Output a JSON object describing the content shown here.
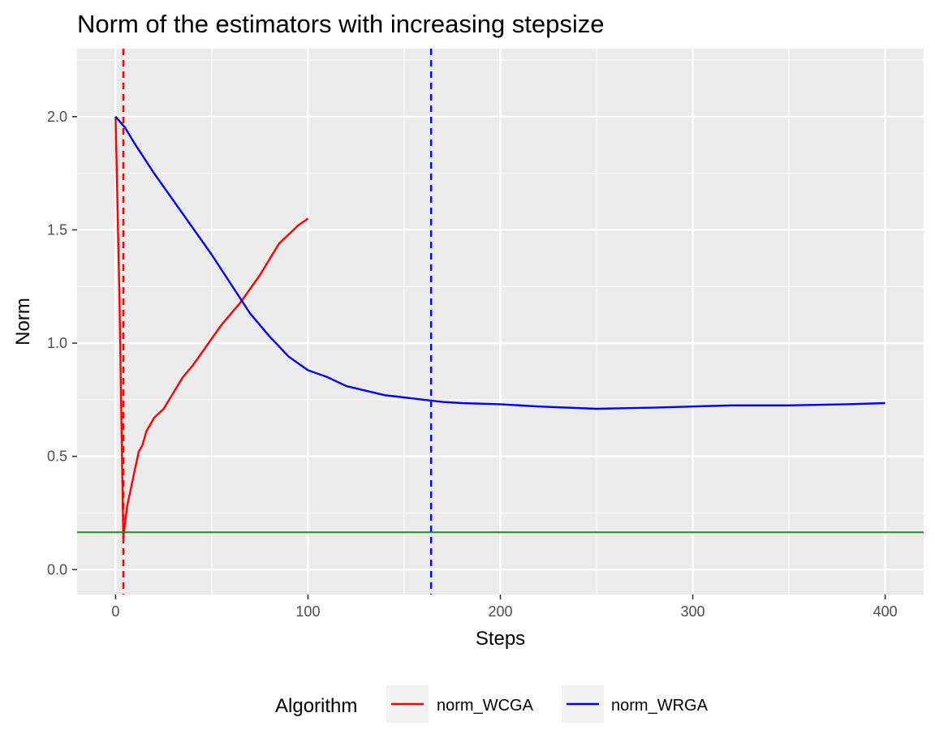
{
  "chart_data": {
    "type": "line",
    "title": "Norm of the estimators with increasing stepsize",
    "xlabel": "Steps",
    "ylabel": "Norm",
    "xlim": [
      -20,
      420
    ],
    "ylim": [
      -0.11,
      2.3
    ],
    "x_ticks": [
      0,
      100,
      200,
      300,
      400
    ],
    "x_tick_labels": [
      "0",
      "100",
      "200",
      "300",
      "400"
    ],
    "y_ticks": [
      0.0,
      0.5,
      1.0,
      1.5,
      2.0
    ],
    "y_tick_labels": [
      "0.0",
      "0.5",
      "1.0",
      "1.5",
      "2.0"
    ],
    "grid": true,
    "legend_position": "bottom",
    "legend_title": "Algorithm",
    "series": [
      {
        "name": "norm_WCGA",
        "color": "#ff0000",
        "x": [
          0,
          2,
          4,
          6,
          8,
          10,
          12,
          14,
          16,
          18,
          20,
          25,
          30,
          35,
          40,
          45,
          50,
          55,
          60,
          65,
          70,
          75,
          80,
          85,
          90,
          95,
          100
        ],
        "y": [
          2.0,
          1.2,
          0.14,
          0.28,
          0.36,
          0.44,
          0.52,
          0.55,
          0.61,
          0.64,
          0.67,
          0.71,
          0.78,
          0.85,
          0.9,
          0.96,
          1.02,
          1.08,
          1.13,
          1.18,
          1.24,
          1.3,
          1.37,
          1.44,
          1.48,
          1.52,
          1.55
        ]
      },
      {
        "name": "norm_WRGA",
        "color": "#0000ff",
        "x": [
          0,
          5,
          10,
          20,
          30,
          40,
          50,
          60,
          70,
          80,
          90,
          100,
          110,
          120,
          130,
          140,
          150,
          160,
          170,
          180,
          200,
          220,
          250,
          280,
          300,
          320,
          350,
          380,
          400
        ],
        "y": [
          2.0,
          1.95,
          1.88,
          1.75,
          1.63,
          1.51,
          1.39,
          1.26,
          1.13,
          1.03,
          0.94,
          0.88,
          0.85,
          0.81,
          0.79,
          0.77,
          0.76,
          0.75,
          0.74,
          0.735,
          0.73,
          0.72,
          0.71,
          0.715,
          0.72,
          0.725,
          0.725,
          0.73,
          0.735
        ]
      }
    ],
    "reference_lines": [
      {
        "orientation": "vertical",
        "x": 4,
        "color": "#ff0000",
        "style": "dashed"
      },
      {
        "orientation": "vertical",
        "x": 164,
        "color": "#0000ff",
        "style": "dashed"
      },
      {
        "orientation": "horizontal",
        "y": 0.165,
        "color": "#228b22",
        "style": "solid"
      }
    ]
  }
}
